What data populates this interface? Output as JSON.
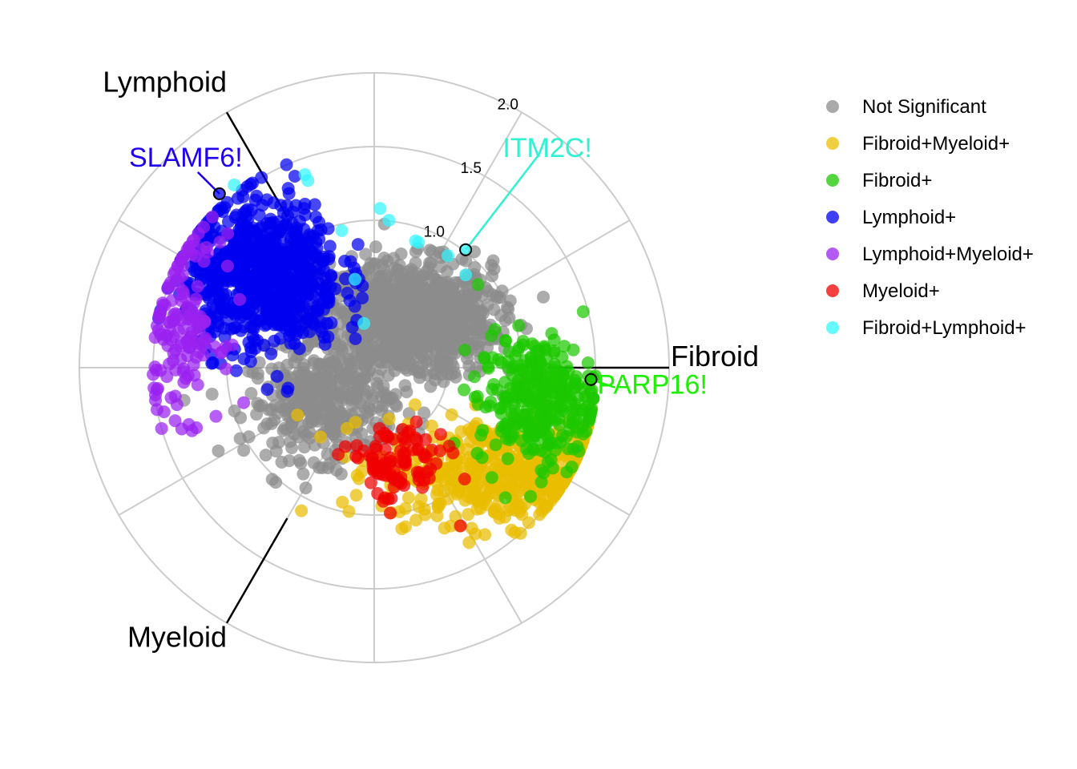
{
  "chart_data": {
    "type": "scatter",
    "coordinate_system": "polar-radar",
    "axes": [
      {
        "name": "Fibroid",
        "angle_deg": 0
      },
      {
        "name": "Lymphoid",
        "angle_deg": 120
      },
      {
        "name": "Myeloid",
        "angle_deg": 240
      }
    ],
    "radial_ticks": [
      "1.0",
      "1.5",
      "2.0"
    ],
    "radial_tick_values": [
      1.0,
      1.5,
      2.0
    ],
    "rlim": [
      0,
      2.0
    ],
    "grid": true,
    "legend_position": "right",
    "series": [
      {
        "name": "Not Significant",
        "color": "#8C8C8C",
        "clusters": [
          {
            "x": 0.2,
            "y": 0.32,
            "sx": 0.3,
            "sy": 0.2,
            "n": 900
          },
          {
            "x": -0.35,
            "y": -0.25,
            "sx": 0.25,
            "sy": 0.18,
            "n": 350
          },
          {
            "x": 0.55,
            "y": 0.35,
            "sx": 0.15,
            "sy": 0.15,
            "n": 120
          }
        ]
      },
      {
        "name": "Fibroid+Myeloid+",
        "color": "#E9BD00",
        "clusters": [
          {
            "x": 0.9,
            "y": -0.7,
            "sx": 0.42,
            "sy": 0.18,
            "n": 520
          }
        ]
      },
      {
        "name": "Fibroid+",
        "color": "#1CC700",
        "clusters": [
          {
            "x": 1.1,
            "y": -0.22,
            "sx": 0.2,
            "sy": 0.22,
            "n": 320
          }
        ]
      },
      {
        "name": "Lymphoid+",
        "color": "#0000F0",
        "clusters": [
          {
            "x": -0.75,
            "y": 0.62,
            "sx": 0.26,
            "sy": 0.25,
            "n": 800
          }
        ]
      },
      {
        "name": "Lymphoid+Myeloid+",
        "color": "#9A21F0",
        "clusters": [
          {
            "x": -1.3,
            "y": 0.28,
            "sx": 0.13,
            "sy": 0.3,
            "n": 150
          }
        ]
      },
      {
        "name": "Myeloid+",
        "color": "#F00000",
        "clusters": [
          {
            "x": 0.15,
            "y": -0.65,
            "sx": 0.17,
            "sy": 0.14,
            "n": 95
          }
        ]
      },
      {
        "name": "Fibroid+Lymphoid+",
        "color": "#33F5FF",
        "points": [
          [
            -0.45,
            1.27
          ],
          [
            -0.47,
            1.31
          ],
          [
            0.04,
            1.08
          ],
          [
            0.1,
            1.0
          ],
          [
            -0.22,
            0.93
          ],
          [
            0.3,
            0.85
          ],
          [
            0.5,
            0.76
          ],
          [
            -0.07,
            0.3
          ],
          [
            0.62,
            0.63
          ],
          [
            -0.95,
            1.24
          ],
          [
            0.28,
            0.86
          ],
          [
            -0.13,
            0.6
          ]
        ]
      }
    ],
    "labeled_genes": [
      {
        "text": "SLAMF6!",
        "x": -1.05,
        "y": 1.18,
        "color": "#1F00EF",
        "series": "Lymphoid+"
      },
      {
        "text": "ITM2C!",
        "x": 0.62,
        "y": 0.8,
        "color": "#2FF2D2",
        "series": "Fibroid+Lymphoid+"
      },
      {
        "text": "PARP16!",
        "x": 1.47,
        "y": -0.08,
        "color": "#1CF000",
        "series": "Fibroid+"
      }
    ]
  }
}
